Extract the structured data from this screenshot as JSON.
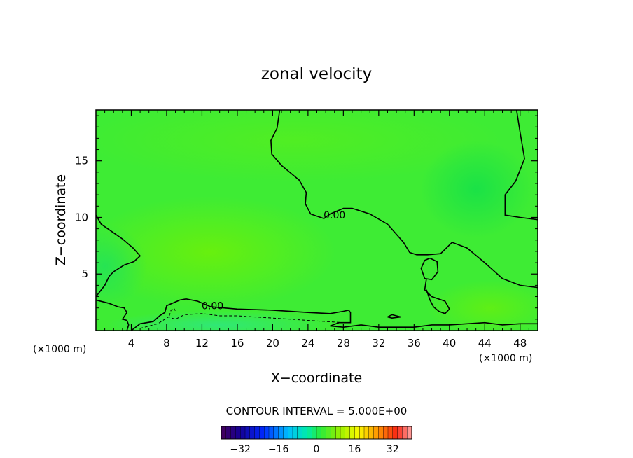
{
  "chart_data": {
    "type": "heatmap",
    "title": "zonal velocity",
    "xlabel": "X−coordinate",
    "ylabel": "Z−coordinate",
    "x_unit": "(×1000 m)",
    "z_unit": "(×1000 m)",
    "xlim": [
      0,
      50
    ],
    "ylim": [
      0,
      19.5
    ],
    "x_ticks": [
      4,
      8,
      12,
      16,
      20,
      24,
      28,
      32,
      36,
      40,
      44,
      48
    ],
    "y_ticks": [
      5,
      10,
      15
    ],
    "contour_interval_text": "CONTOUR INTERVAL = 5.000E+00",
    "contour_label": "0.00",
    "zero_contour_labels": [
      {
        "text": "0.00",
        "x": 27,
        "z": 10.2
      },
      {
        "text": "0.00",
        "x": 13.2,
        "z": 2.2
      }
    ],
    "zero_contours": [
      [
        [
          20.8,
          19.5
        ],
        [
          20.5,
          17.9
        ],
        [
          19.8,
          16.8
        ],
        [
          19.9,
          15.6
        ],
        [
          21,
          14.6
        ],
        [
          23,
          13.3
        ],
        [
          23.8,
          12.2
        ],
        [
          23.7,
          11.2
        ],
        [
          24.3,
          10.3
        ],
        [
          25.8,
          9.9
        ],
        [
          26.5,
          10.3
        ],
        [
          28,
          10.8
        ],
        [
          29,
          10.8
        ],
        [
          31,
          10.3
        ],
        [
          33,
          9.4
        ],
        [
          34.8,
          7.8
        ],
        [
          35.5,
          6.9
        ],
        [
          36.3,
          6.7
        ],
        [
          37.5,
          6.7
        ],
        [
          39,
          6.8
        ],
        [
          40.3,
          7.8
        ],
        [
          42,
          7.3
        ],
        [
          44,
          6.0
        ],
        [
          46,
          4.6
        ],
        [
          48,
          4.0
        ],
        [
          50,
          3.8
        ]
      ],
      [
        [
          47.6,
          19.5
        ],
        [
          48,
          17.5
        ],
        [
          48.5,
          15.2
        ],
        [
          47.5,
          13.2
        ],
        [
          46.3,
          12.0
        ],
        [
          46.3,
          10.2
        ],
        [
          48,
          10.0
        ],
        [
          50,
          9.8
        ]
      ],
      [
        [
          0,
          10.2
        ],
        [
          0.6,
          9.4
        ],
        [
          3,
          8.1
        ],
        [
          4.2,
          7.3
        ],
        [
          5,
          6.6
        ],
        [
          4.3,
          6.1
        ],
        [
          3.2,
          5.8
        ],
        [
          2,
          5.2
        ],
        [
          1.5,
          4.8
        ],
        [
          1.0,
          4.0
        ],
        [
          0.5,
          3.5
        ],
        [
          0,
          3.0
        ]
      ],
      [
        [
          37.8,
          6.4
        ],
        [
          38.6,
          6.1
        ],
        [
          38.7,
          5.2
        ],
        [
          38,
          4.5
        ],
        [
          37.2,
          4.6
        ],
        [
          36.8,
          5.5
        ],
        [
          37.2,
          6.2
        ],
        [
          37.8,
          6.4
        ]
      ],
      [
        [
          37.4,
          4.6
        ],
        [
          37.2,
          3.6
        ],
        [
          38,
          3.0
        ],
        [
          39.5,
          2.6
        ],
        [
          40,
          1.9
        ],
        [
          39.5,
          1.5
        ],
        [
          38.8,
          1.7
        ],
        [
          38.2,
          2.1
        ],
        [
          37.8,
          2.7
        ],
        [
          37.4,
          3.6
        ]
      ],
      [
        [
          0,
          2.7
        ],
        [
          1.5,
          2.4
        ],
        [
          2.5,
          2.1
        ],
        [
          3.2,
          2.0
        ],
        [
          3.5,
          1.6
        ],
        [
          3.0,
          1.0
        ],
        [
          3.5,
          0.9
        ],
        [
          3.7,
          0.5
        ],
        [
          3.5,
          0
        ]
      ],
      [
        [
          4,
          0
        ],
        [
          5,
          0.6
        ],
        [
          6.5,
          0.8
        ],
        [
          7.2,
          1.3
        ],
        [
          7.8,
          1.6
        ],
        [
          8,
          2.2
        ],
        [
          9.5,
          2.7
        ],
        [
          10.2,
          2.8
        ],
        [
          11.5,
          2.6
        ],
        [
          13,
          2.1
        ],
        [
          16,
          1.9
        ],
        [
          20,
          1.8
        ],
        [
          24,
          1.6
        ],
        [
          26.5,
          1.5
        ],
        [
          28,
          1.7
        ],
        [
          28.6,
          1.8
        ],
        [
          28.8,
          1.6
        ],
        [
          28.8,
          0.7
        ],
        [
          27.5,
          0.7
        ],
        [
          26.5,
          0.4
        ],
        [
          28,
          0.3
        ],
        [
          30,
          0.5
        ],
        [
          32,
          0.3
        ],
        [
          36,
          0.3
        ],
        [
          38,
          0.5
        ],
        [
          40,
          0.5
        ],
        [
          42,
          0.6
        ],
        [
          44,
          0.7
        ],
        [
          46,
          0.5
        ],
        [
          48,
          0.6
        ],
        [
          50,
          0.6
        ]
      ],
      [
        [
          33,
          1.2
        ],
        [
          33.5,
          1.4
        ],
        [
          34,
          1.3
        ],
        [
          34.5,
          1.2
        ],
        [
          33.5,
          1.1
        ],
        [
          33,
          1.2
        ]
      ]
    ],
    "negative_contours": [
      [
        [
          5,
          0.2
        ],
        [
          7,
          0.6
        ],
        [
          8.2,
          1.2
        ],
        [
          9,
          1.0
        ],
        [
          10,
          1.4
        ],
        [
          12,
          1.5
        ],
        [
          14,
          1.3
        ],
        [
          16,
          1.3
        ],
        [
          18,
          1.2
        ],
        [
          20,
          1.1
        ],
        [
          22,
          1.0
        ],
        [
          24,
          0.9
        ],
        [
          26,
          0.8
        ],
        [
          28,
          0.7
        ]
      ],
      [
        [
          8.3,
          1.3
        ],
        [
          8.5,
          1.8
        ],
        [
          8.8,
          2.0
        ],
        [
          9.1,
          1.6
        ]
      ]
    ],
    "color_scale": {
      "ticks": [
        -32,
        -16,
        0,
        16,
        32
      ],
      "range": [
        -40,
        40
      ],
      "step": 2
    }
  }
}
